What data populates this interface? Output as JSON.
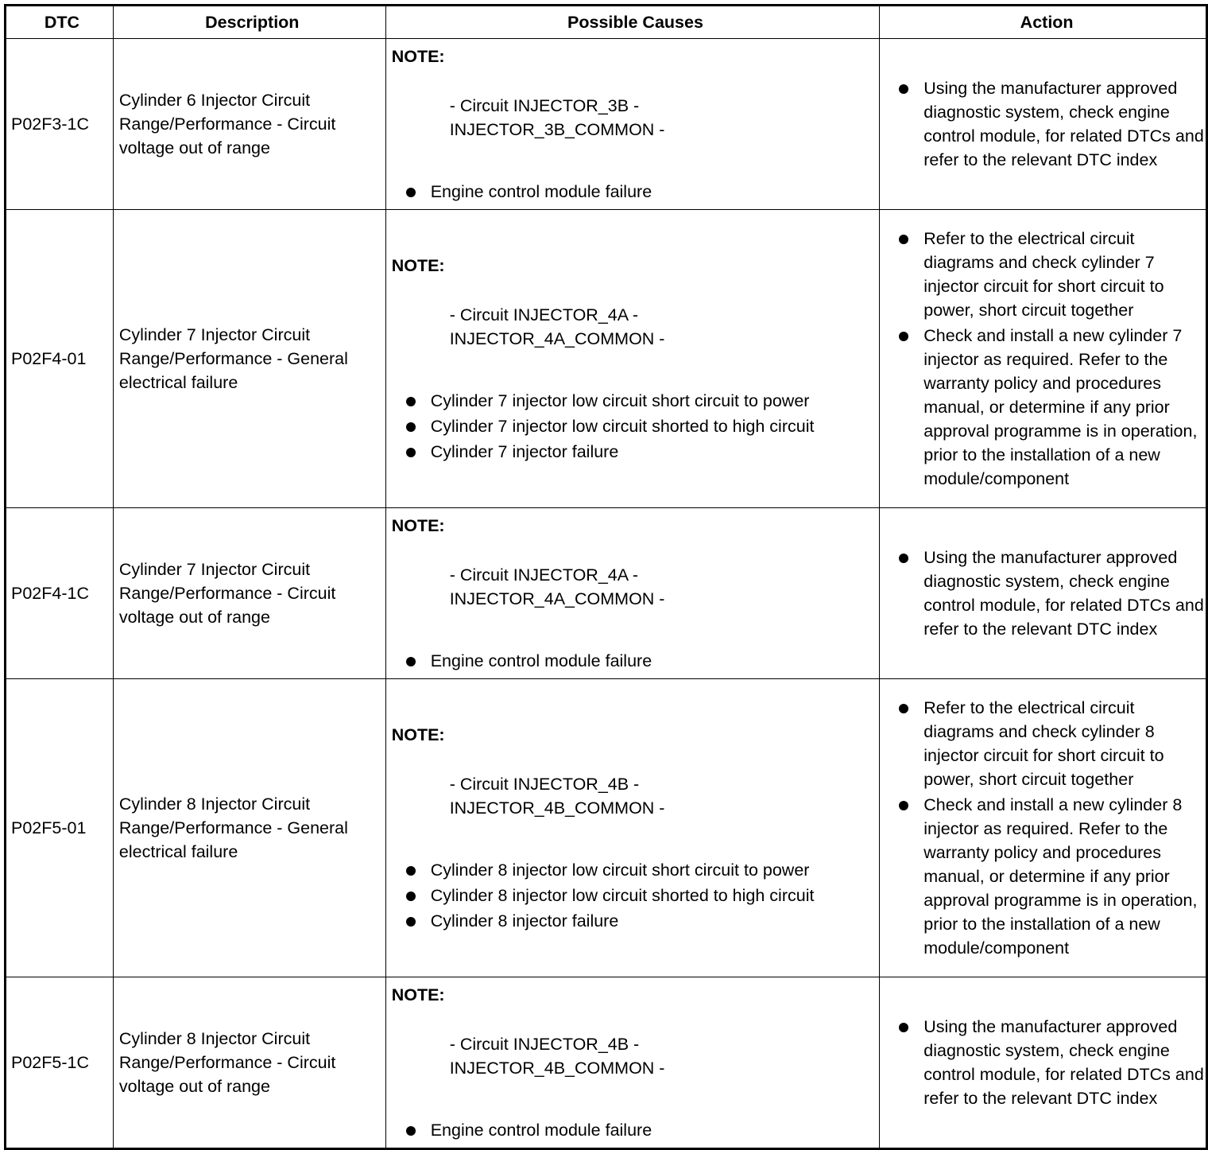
{
  "headers": [
    "DTC",
    "Description",
    "Possible Causes",
    "Action"
  ],
  "rows": [
    {
      "dtc": "P02F3-1C",
      "description": "Cylinder 6 Injector Circuit Range/Performance - Circuit voltage out of range",
      "note": "NOTE:",
      "circuit": [
        "- Circuit INJECTOR_3B -",
        "INJECTOR_3B_COMMON -"
      ],
      "causes": [
        "Engine control module failure"
      ],
      "actions": [
        "Using the manufacturer approved diagnostic system, check engine control module, for related DTCs and refer to the relevant DTC index"
      ]
    },
    {
      "dtc": "P02F4-01",
      "description": "Cylinder 7 Injector Circuit Range/Performance - General electrical failure",
      "note": "NOTE:",
      "circuit": [
        "- Circuit INJECTOR_4A -",
        "INJECTOR_4A_COMMON -"
      ],
      "causes": [
        "Cylinder 7 injector low circuit short circuit to power",
        "Cylinder 7 injector low circuit shorted to high circuit",
        "Cylinder 7 injector failure"
      ],
      "actions": [
        "Refer to the electrical circuit diagrams and check cylinder 7 injector circuit for short circuit to power, short circuit together",
        "Check and install a new cylinder 7 injector as required. Refer to the warranty policy and procedures manual, or determine if any prior approval programme is in operation, prior to the installation of a new module/component"
      ]
    },
    {
      "dtc": "P02F4-1C",
      "description": "Cylinder 7 Injector Circuit Range/Performance - Circuit voltage out of range",
      "note": "NOTE:",
      "circuit": [
        "- Circuit INJECTOR_4A -",
        "INJECTOR_4A_COMMON -"
      ],
      "causes": [
        "Engine control module failure"
      ],
      "actions": [
        "Using the manufacturer approved diagnostic system, check engine control module, for related DTCs and refer to the relevant DTC index"
      ]
    },
    {
      "dtc": "P02F5-01",
      "description": "Cylinder 8 Injector Circuit Range/Performance - General electrical failure",
      "note": "NOTE:",
      "circuit": [
        "- Circuit INJECTOR_4B -",
        "INJECTOR_4B_COMMON -"
      ],
      "causes": [
        "Cylinder 8 injector low circuit short circuit to power",
        "Cylinder 8 injector low circuit shorted to high circuit",
        "Cylinder 8 injector failure"
      ],
      "actions": [
        "Refer to the electrical circuit diagrams and check cylinder 8 injector circuit for short circuit to power, short circuit together",
        "Check and install a new cylinder 8 injector as required. Refer to the warranty policy and procedures manual, or determine if any prior approval programme is in operation, prior to the installation of a new module/component"
      ]
    },
    {
      "dtc": "P02F5-1C",
      "description": "Cylinder 8 Injector Circuit Range/Performance - Circuit voltage out of range",
      "note": "NOTE:",
      "circuit": [
        "- Circuit INJECTOR_4B -",
        "INJECTOR_4B_COMMON -"
      ],
      "causes": [
        "Engine control module failure"
      ],
      "actions": [
        "Using the manufacturer approved diagnostic system, check engine control module, for related DTCs and refer to the relevant DTC index"
      ]
    }
  ]
}
